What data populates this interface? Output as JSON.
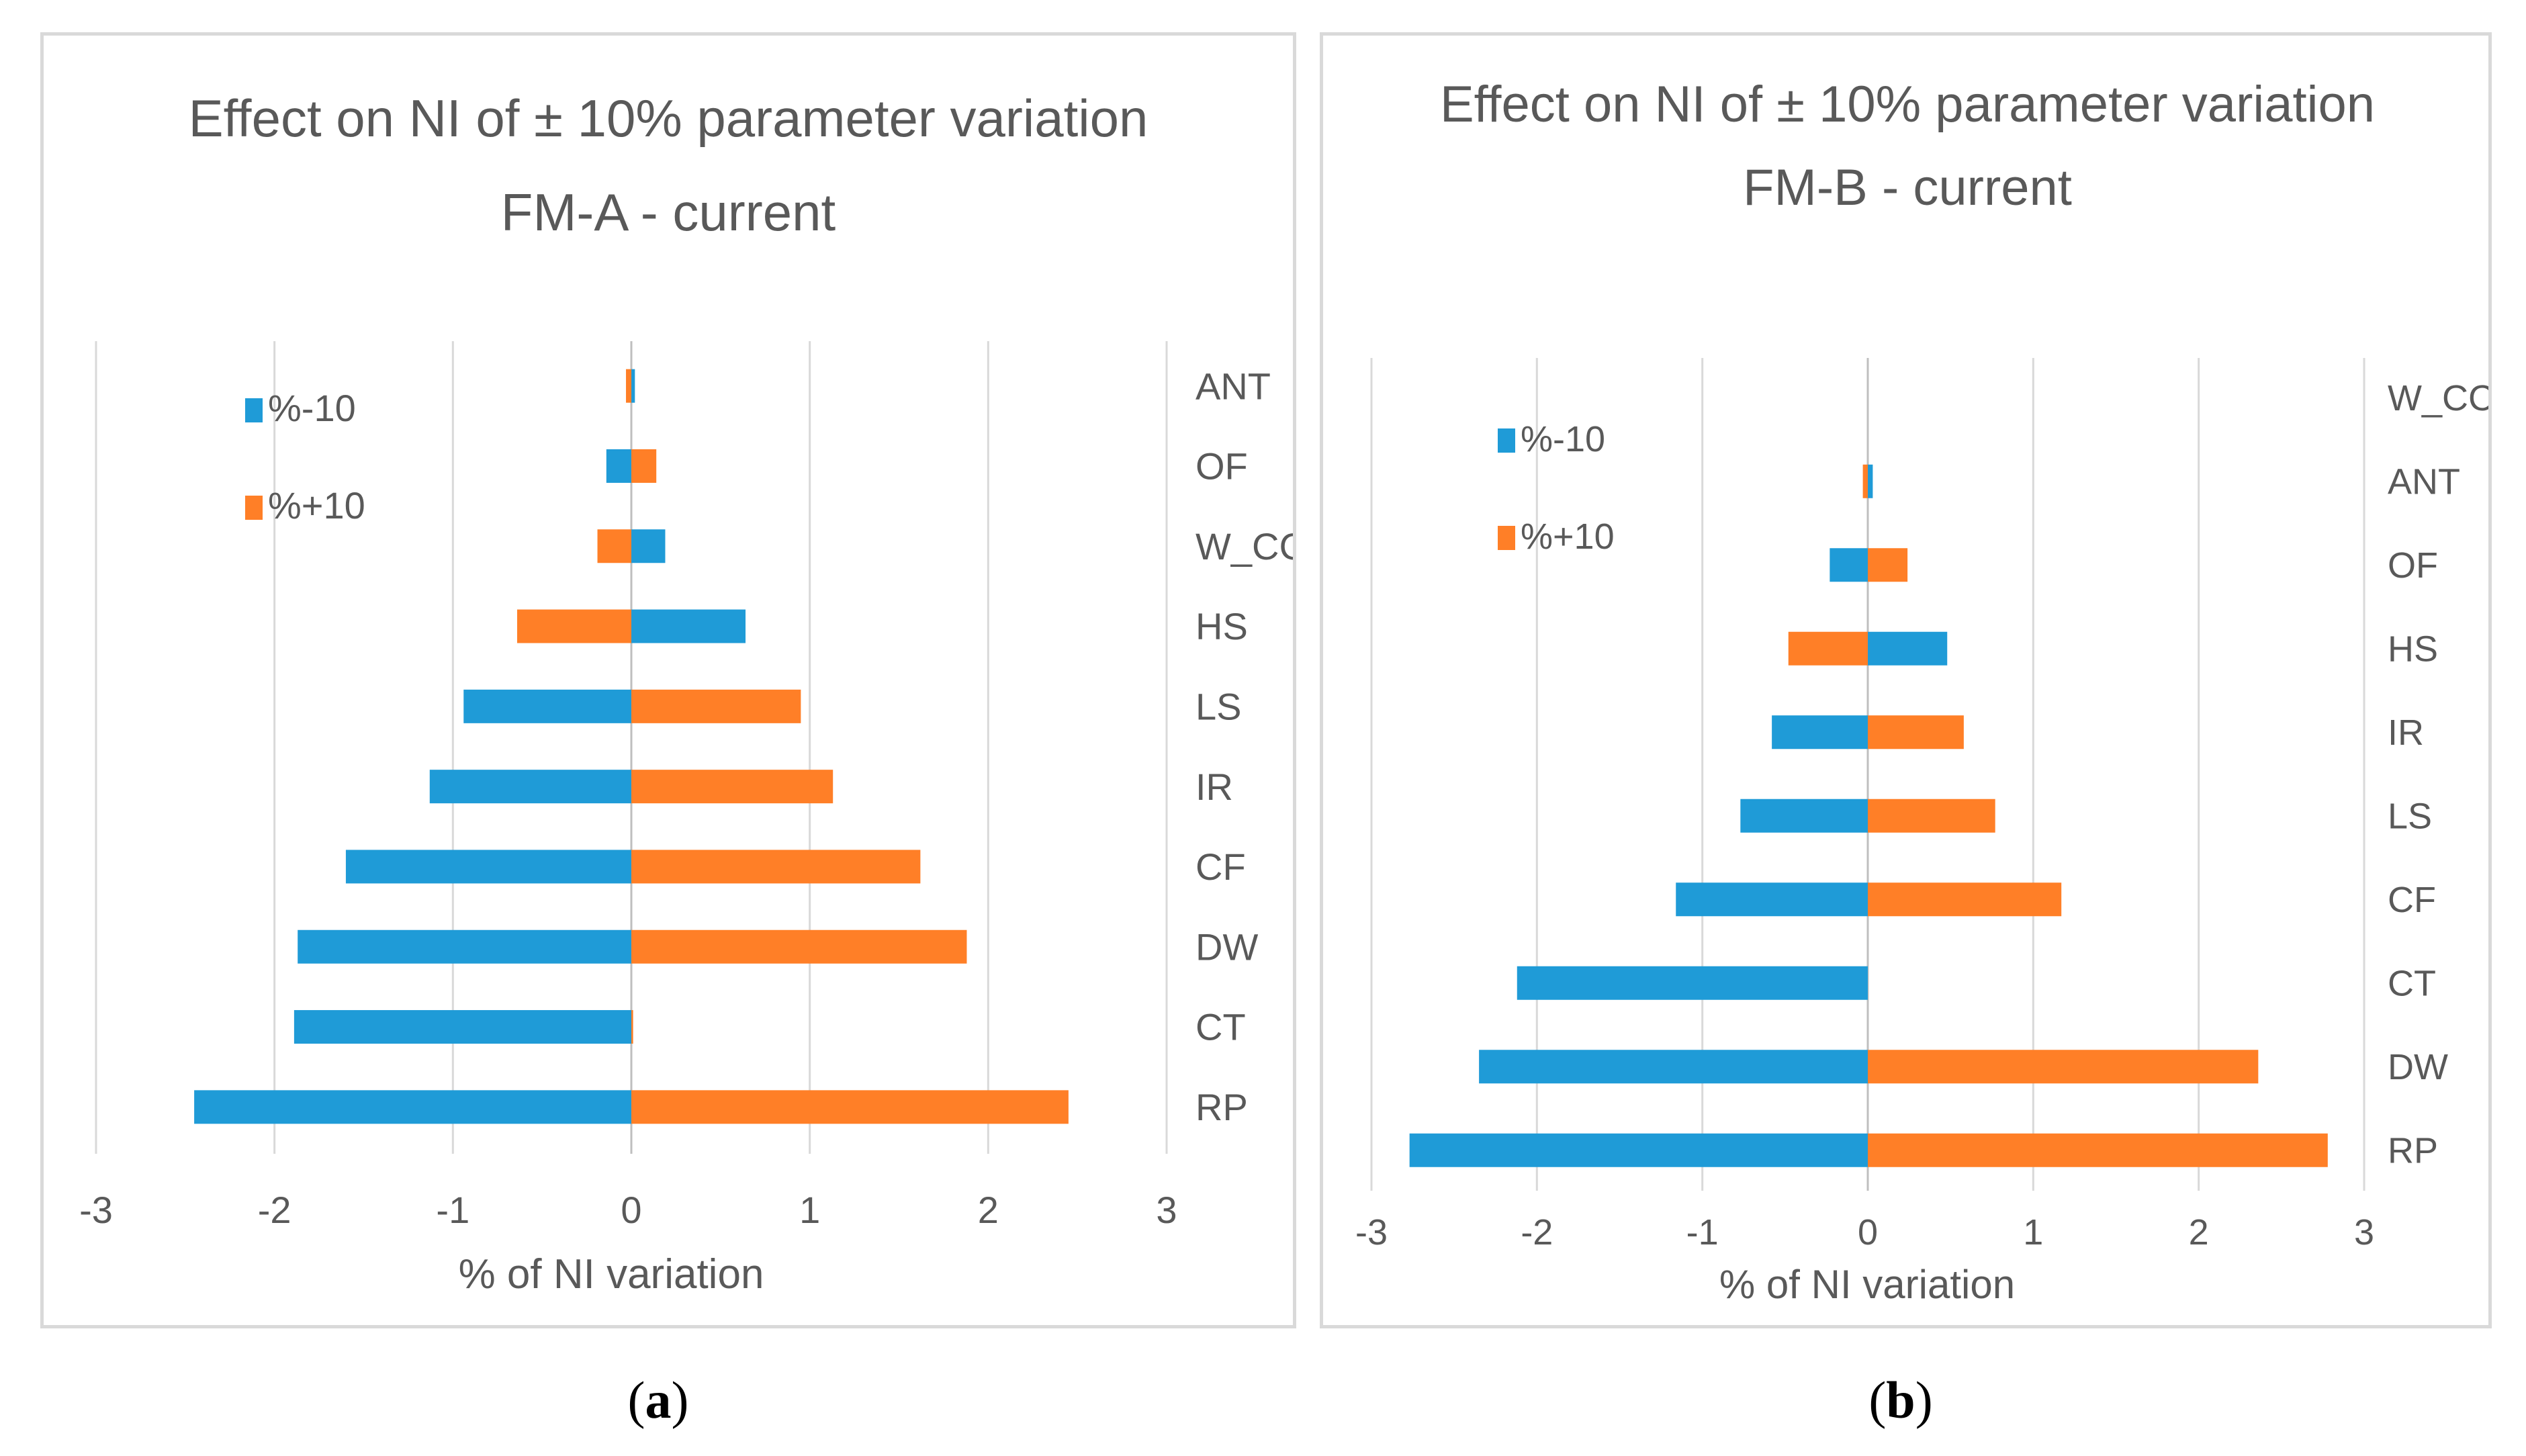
{
  "chart_data": [
    {
      "type": "bar",
      "orientation": "horizontal",
      "title": "Effect on NI of ± 10% parameter variation",
      "subtitle": "FM-A - current",
      "xlabel": "% of NI variation",
      "ylabel": "",
      "xlim": [
        -3,
        3
      ],
      "xticks": [
        "-3",
        "-2",
        "-1",
        "0",
        "1",
        "2",
        "3"
      ],
      "grid": true,
      "legend_position": "top-left",
      "categories": [
        "ANT",
        "OF",
        "W_CC",
        "HS",
        "LS",
        "IR",
        "CF",
        "DW",
        "CT",
        "RP"
      ],
      "series": [
        {
          "name": "%-10",
          "color": "#1f9bd7",
          "values": [
            0.02,
            -0.14,
            0.19,
            0.64,
            -0.94,
            -1.13,
            -1.6,
            -1.87,
            -1.89,
            -2.45
          ]
        },
        {
          "name": "%+10",
          "color": "#ff7f27",
          "values": [
            -0.03,
            0.14,
            -0.19,
            -0.64,
            0.95,
            1.13,
            1.62,
            1.88,
            0.01,
            2.45
          ]
        }
      ]
    },
    {
      "type": "bar",
      "orientation": "horizontal",
      "title": "Effect on NI of ± 10% parameter variation",
      "subtitle": "FM-B - current",
      "xlabel": "% of NI variation",
      "ylabel": "",
      "xlim": [
        -3,
        3
      ],
      "xticks": [
        "-3",
        "-2",
        "-1",
        "0",
        "1",
        "2",
        "3"
      ],
      "grid": true,
      "legend_position": "top-left",
      "categories": [
        "W_CC",
        "ANT",
        "OF",
        "HS",
        "IR",
        "LS",
        "CF",
        "CT",
        "DW",
        "RP"
      ],
      "series": [
        {
          "name": "%-10",
          "color": "#1f9bd7",
          "values": [
            0,
            0.03,
            -0.23,
            0.48,
            -0.58,
            -0.77,
            -1.16,
            -2.12,
            -2.35,
            -2.77
          ]
        },
        {
          "name": "%+10",
          "color": "#ff7f27",
          "values": [
            0,
            -0.03,
            0.24,
            -0.48,
            0.58,
            0.77,
            1.17,
            0,
            2.36,
            2.78
          ]
        }
      ]
    }
  ],
  "captions": {
    "a": "a",
    "b": "b"
  }
}
